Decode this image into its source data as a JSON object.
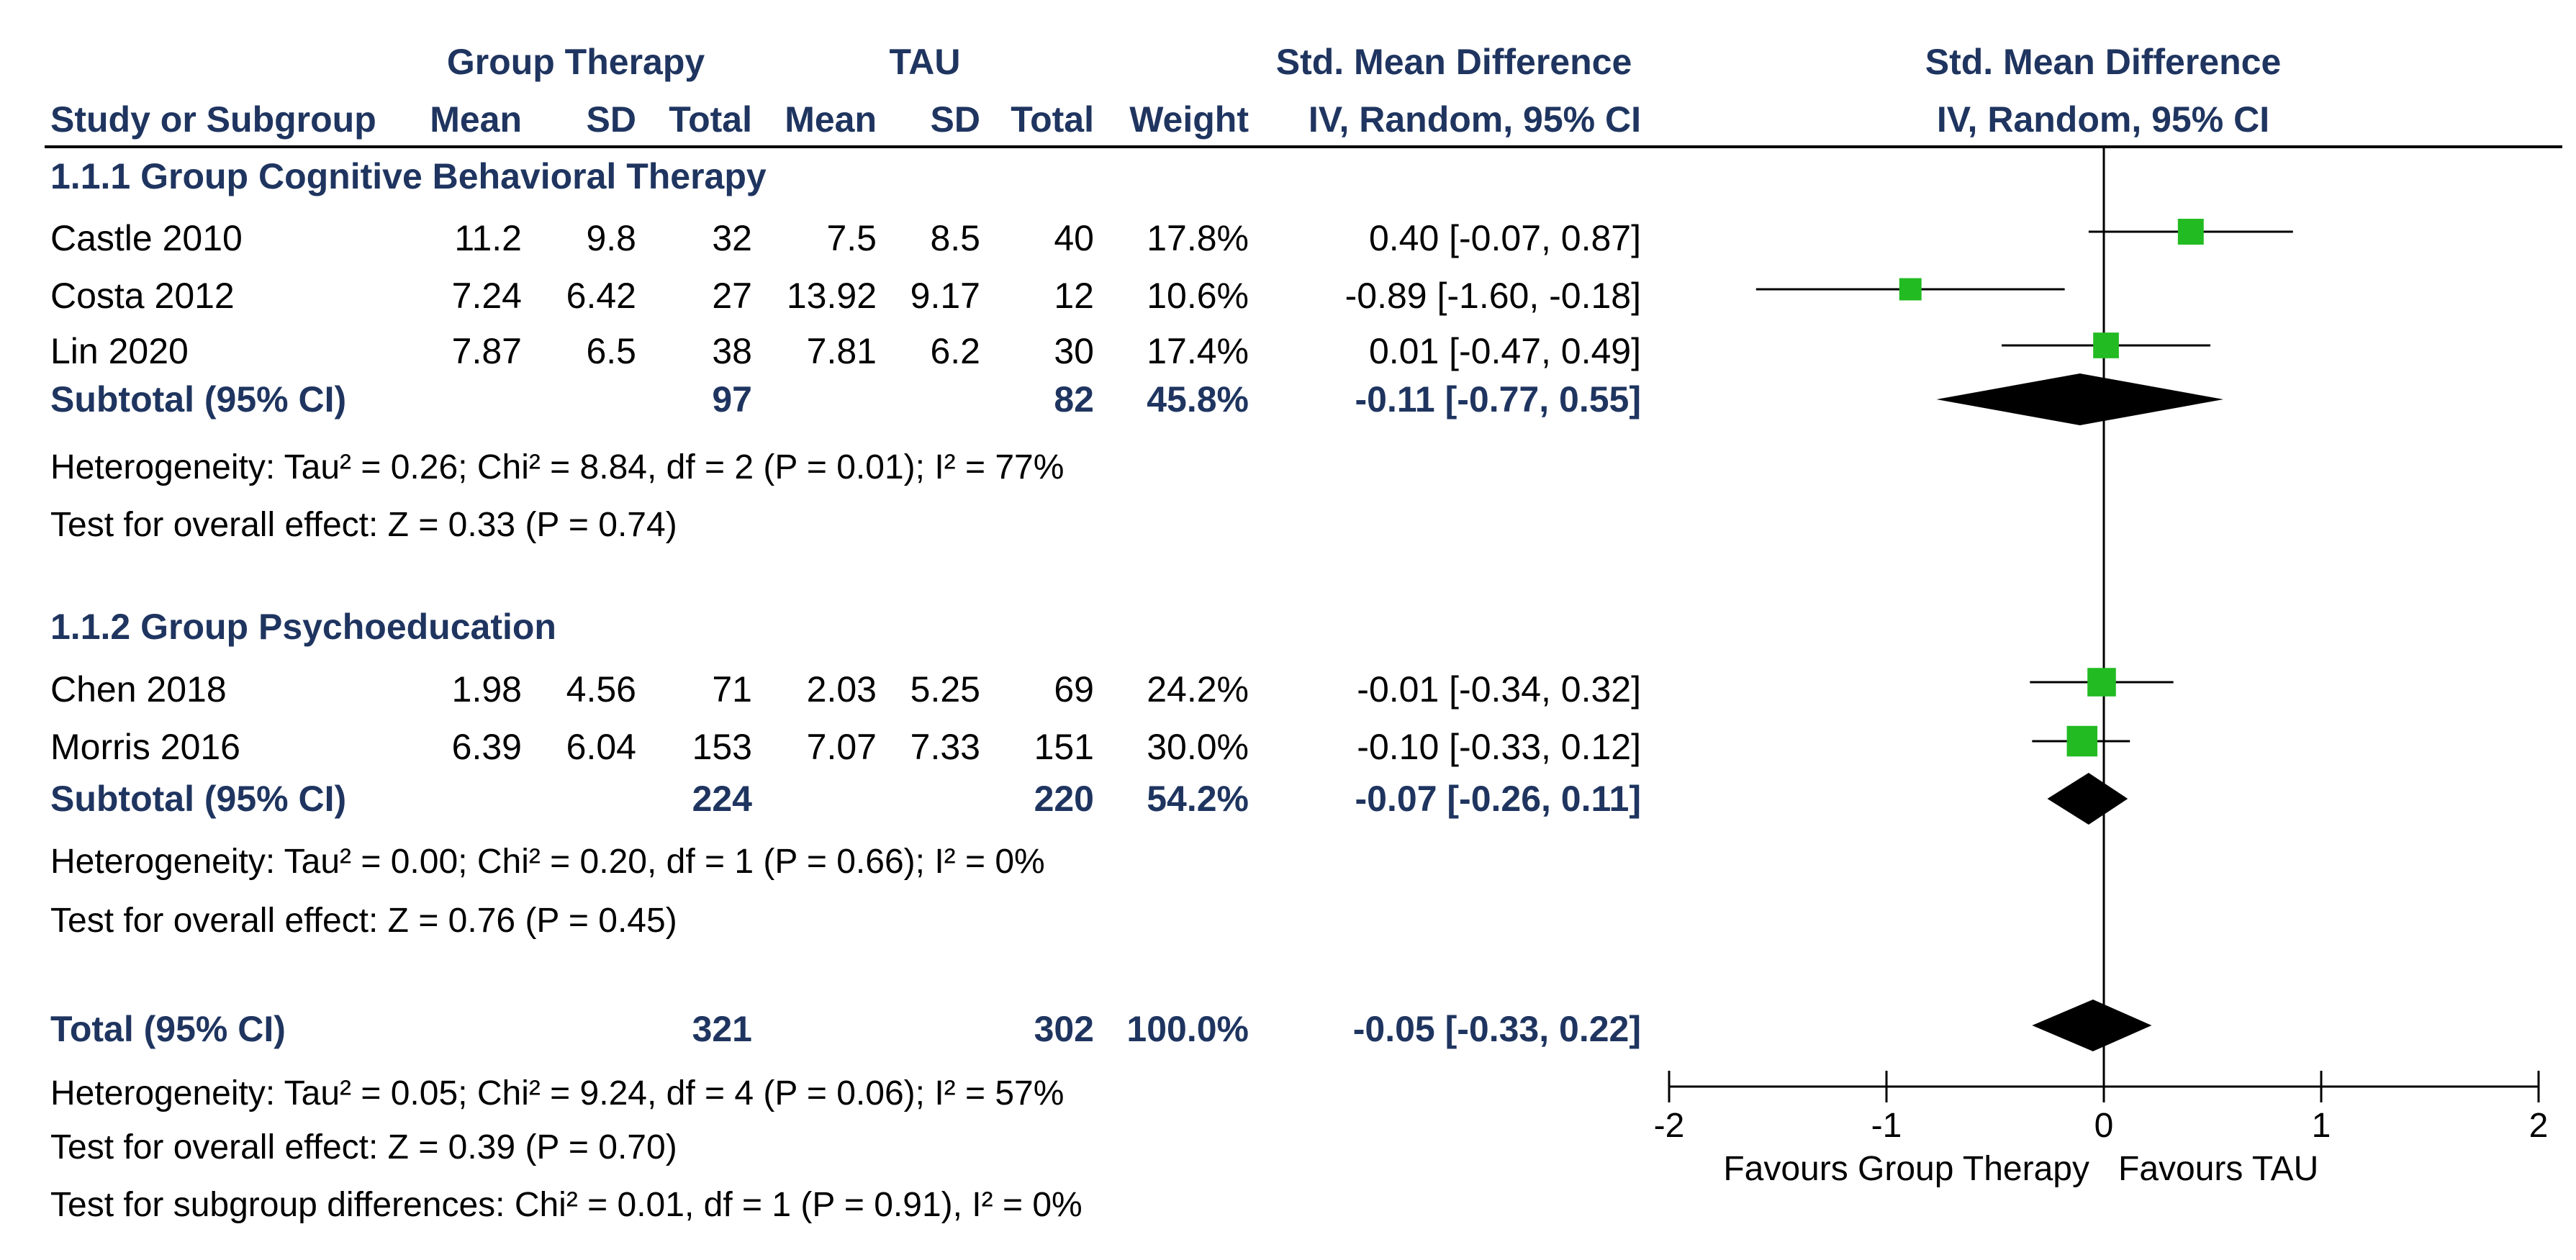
{
  "colors": {
    "header_text": "#1f3560",
    "marker": "#22bb22",
    "diamond": "#000000",
    "line": "#000000"
  },
  "headers": {
    "group_therapy": "Group Therapy",
    "tau": "TAU",
    "smd_left": "Std. Mean Difference",
    "smd_right": "Std. Mean Difference",
    "study": "Study or Subgroup",
    "mean1": "Mean",
    "sd1": "SD",
    "total1": "Total",
    "mean2": "Mean",
    "sd2": "SD",
    "total2": "Total",
    "weight": "Weight",
    "ci_left": "IV, Random, 95% CI",
    "ci_right": "IV, Random, 95% CI"
  },
  "groups": [
    {
      "title": "1.1.1 Group Cognitive Behavioral Therapy",
      "studies": [
        {
          "name": "Castle 2010",
          "mean1": "11.2",
          "sd1": "9.8",
          "total1": "32",
          "mean2": "7.5",
          "sd2": "8.5",
          "total2": "40",
          "weight": "17.8%",
          "ci": "0.40 [-0.07, 0.87]"
        },
        {
          "name": "Costa 2012",
          "mean1": "7.24",
          "sd1": "6.42",
          "total1": "27",
          "mean2": "13.92",
          "sd2": "9.17",
          "total2": "12",
          "weight": "10.6%",
          "ci": "-0.89 [-1.60, -0.18]"
        },
        {
          "name": "Lin 2020",
          "mean1": "7.87",
          "sd1": "6.5",
          "total1": "38",
          "mean2": "7.81",
          "sd2": "6.2",
          "total2": "30",
          "weight": "17.4%",
          "ci": "0.01 [-0.47, 0.49]"
        }
      ],
      "subtotal": {
        "label": "Subtotal (95% CI)",
        "total1": "97",
        "total2": "82",
        "weight": "45.8%",
        "ci": "-0.11 [-0.77, 0.55]"
      },
      "heterogeneity": "Heterogeneity: Tau² = 0.26; Chi² = 8.84, df = 2 (P = 0.01); I² = 77%",
      "overall": "Test for overall effect: Z = 0.33 (P = 0.74)"
    },
    {
      "title": "1.1.2 Group Psychoeducation",
      "studies": [
        {
          "name": "Chen 2018",
          "mean1": "1.98",
          "sd1": "4.56",
          "total1": "71",
          "mean2": "2.03",
          "sd2": "5.25",
          "total2": "69",
          "weight": "24.2%",
          "ci": "-0.01 [-0.34, 0.32]"
        },
        {
          "name": "Morris 2016",
          "mean1": "6.39",
          "sd1": "6.04",
          "total1": "153",
          "mean2": "7.07",
          "sd2": "7.33",
          "total2": "151",
          "weight": "30.0%",
          "ci": "-0.10 [-0.33, 0.12]"
        }
      ],
      "subtotal": {
        "label": "Subtotal (95% CI)",
        "total1": "224",
        "total2": "220",
        "weight": "54.2%",
        "ci": "-0.07 [-0.26, 0.11]"
      },
      "heterogeneity": "Heterogeneity: Tau² = 0.00; Chi² = 0.20, df = 1 (P = 0.66); I² = 0%",
      "overall": "Test for overall effect: Z = 0.76 (P = 0.45)"
    }
  ],
  "total": {
    "label": "Total (95% CI)",
    "total1": "321",
    "total2": "302",
    "weight": "100.0%",
    "ci": "-0.05 [-0.33, 0.22]",
    "heterogeneity": "Heterogeneity: Tau² = 0.05; Chi² = 9.24, df = 4 (P = 0.06); I² = 57%",
    "overall": "Test for overall effect: Z = 0.39 (P = 0.70)",
    "subgroup": "Test for subgroup differences: Chi² = 0.01, df = 1 (P = 0.91), I² = 0%"
  },
  "chart_data": {
    "type": "forest",
    "title": "Std. Mean Difference IV, Random, 95% CI",
    "xlim": [
      -2,
      2
    ],
    "ticks": [
      -2,
      -1,
      0,
      1,
      2
    ],
    "tick_labels": [
      "-2",
      "-1",
      "0",
      "1",
      "2"
    ],
    "favours_left": "Favours Group Therapy",
    "favours_right": "Favours TAU",
    "studies": [
      {
        "name": "Castle 2010",
        "estimate": 0.4,
        "lower": -0.07,
        "upper": 0.87,
        "weight": 17.8
      },
      {
        "name": "Costa 2012",
        "estimate": -0.89,
        "lower": -1.6,
        "upper": -0.18,
        "weight": 10.6
      },
      {
        "name": "Lin 2020",
        "estimate": 0.01,
        "lower": -0.47,
        "upper": 0.49,
        "weight": 17.4
      },
      {
        "name": "Chen 2018",
        "estimate": -0.01,
        "lower": -0.34,
        "upper": 0.32,
        "weight": 24.2
      },
      {
        "name": "Morris 2016",
        "estimate": -0.1,
        "lower": -0.33,
        "upper": 0.12,
        "weight": 30.0
      }
    ],
    "diamonds": [
      {
        "name": "Subtotal 1.1.1",
        "estimate": -0.11,
        "lower": -0.77,
        "upper": 0.55
      },
      {
        "name": "Subtotal 1.1.2",
        "estimate": -0.07,
        "lower": -0.26,
        "upper": 0.11
      },
      {
        "name": "Total",
        "estimate": -0.05,
        "lower": -0.33,
        "upper": 0.22
      }
    ]
  }
}
